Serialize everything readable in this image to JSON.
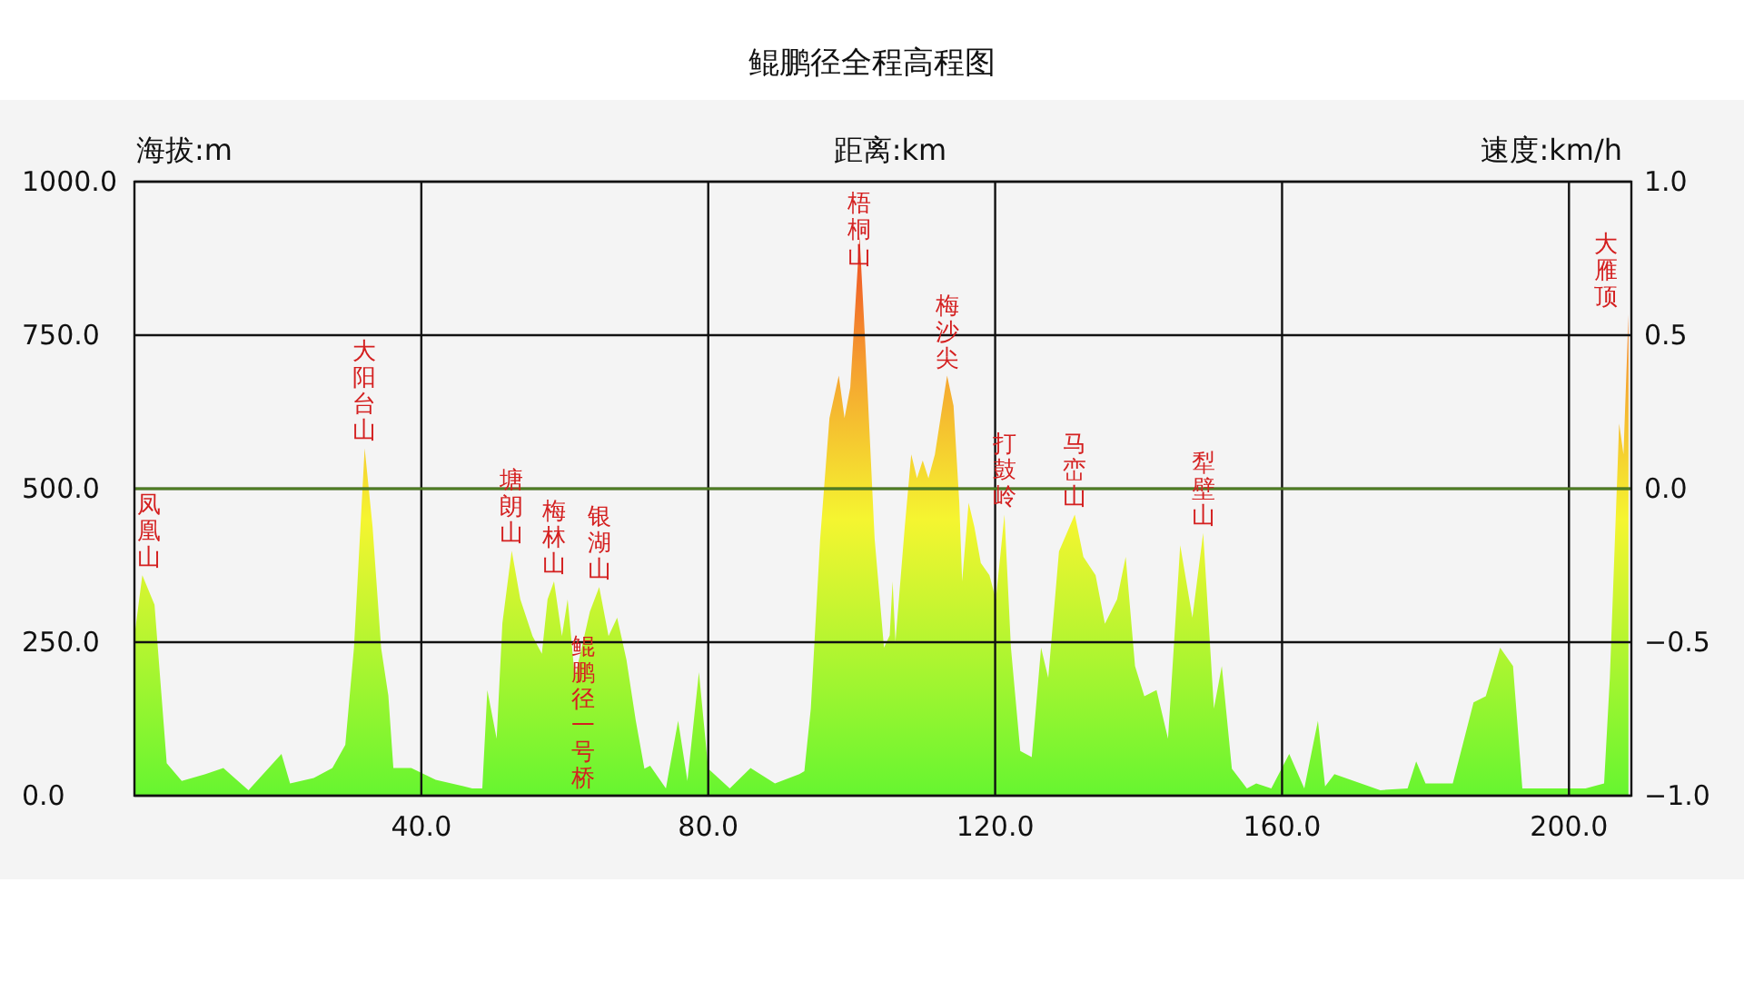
{
  "chart_data": {
    "type": "area",
    "title": "鲲鹏径全程高程图",
    "xlabel": "距离:km",
    "ylabel": "海拔:m",
    "y2label": "速度:km/h",
    "x": [
      0,
      1.1,
      2.8,
      4.5,
      6.6,
      9.9,
      12.4,
      15.9,
      20.5,
      21.7,
      25,
      27.6,
      29.4,
      30.6,
      32.1,
      33.2,
      34.4,
      35.4,
      36.1,
      38.6,
      42,
      47.1,
      48.5,
      49.2,
      50.5,
      51.3,
      52.6,
      53.8,
      55.5,
      56.8,
      57.6,
      58.5,
      59.6,
      60.4,
      61.4,
      63.5,
      64.8,
      66.1,
      67.3,
      68.6,
      69.9,
      71.1,
      71.9,
      74.1,
      75.8,
      77.1,
      78.7,
      80,
      83,
      85.9,
      89.3,
      92.7,
      93.4,
      94.3,
      95.6,
      96.9,
      98.2,
      99,
      99.8,
      101.1,
      101.9,
      103.2,
      104.5,
      105.3,
      105.7,
      106.1,
      107.4,
      108.3,
      109.1,
      109.9,
      110.7,
      111.6,
      113.3,
      114.2,
      115,
      115.4,
      116.3,
      117.1,
      118,
      119.2,
      120.1,
      121.3,
      122.2,
      123.5,
      125.1,
      126.4,
      127.4,
      128.9,
      131.1,
      132.3,
      134,
      135.3,
      137,
      138.2,
      139.5,
      140.8,
      142.5,
      144.1,
      145.8,
      147.5,
      149,
      150.5,
      151.6,
      153,
      155.1,
      156.4,
      158.5,
      161,
      163.1,
      165,
      166,
      167.3,
      173.7,
      177.5,
      178.7,
      180,
      183.8,
      186.7,
      188.4,
      190.4,
      192.2,
      193.5,
      197.3,
      202.3,
      204.9,
      205.7,
      207,
      207.6,
      208.3
    ],
    "values": [
      260,
      359,
      311,
      53,
      24,
      35,
      45,
      9,
      68,
      20,
      29,
      45,
      83,
      240,
      566,
      438,
      240,
      163,
      45,
      45,
      26,
      12,
      12,
      172,
      93,
      281,
      399,
      320,
      260,
      231,
      320,
      349,
      260,
      320,
      192,
      300,
      340,
      260,
      290,
      221,
      122,
      44,
      49,
      12,
      122,
      24,
      201,
      44,
      12,
      45,
      20,
      35,
      40,
      142,
      418,
      615,
      684,
      615,
      665,
      911,
      734,
      418,
      241,
      261,
      349,
      251,
      438,
      556,
      517,
      546,
      517,
      556,
      684,
      635,
      477,
      349,
      477,
      438,
      379,
      359,
      320,
      458,
      241,
      73,
      63,
      241,
      192,
      398,
      458,
      389,
      359,
      280,
      320,
      389,
      211,
      162,
      172,
      93,
      408,
      290,
      428,
      142,
      211,
      44,
      12,
      20,
      12,
      68,
      12,
      122,
      15,
      35,
      9,
      12,
      56,
      20,
      20,
      152,
      162,
      241,
      211,
      12,
      12,
      12,
      20,
      192,
      606,
      556,
      784
    ],
    "xlim": [
      0,
      208.7
    ],
    "ylim": [
      0,
      1000
    ],
    "y2lim": [
      -1,
      1
    ],
    "xticks": [
      {
        "value": 40,
        "label": "40.0"
      },
      {
        "value": 80,
        "label": "80.0"
      },
      {
        "value": 120,
        "label": "120.0"
      },
      {
        "value": 160,
        "label": "160.0"
      },
      {
        "value": 200,
        "label": "200.0"
      }
    ],
    "yticks": [
      {
        "value": 0,
        "label": "0.0"
      },
      {
        "value": 250,
        "label": "250.0"
      },
      {
        "value": 500,
        "label": "500.0"
      },
      {
        "value": 750,
        "label": "750.0"
      },
      {
        "value": 1000,
        "label": "1000.0"
      }
    ],
    "y2ticks": [
      {
        "value": 1,
        "label": "1.0"
      },
      {
        "value": 0.5,
        "label": "0.5"
      },
      {
        "value": 0,
        "label": "0.0"
      },
      {
        "value": -0.5,
        "label": "−0.5"
      },
      {
        "value": -1,
        "label": "−1.0"
      }
    ],
    "grid": true,
    "ref_lines": [
      {
        "axis": "y2",
        "value": 0,
        "color": "#4e7d22"
      }
    ],
    "annotations": [
      {
        "text": "凤凰山",
        "x": 1.1,
        "y": 359
      },
      {
        "text": "大阳台山",
        "x": 32.1,
        "y": 566
      },
      {
        "text": "塘朗山",
        "x": 52.6,
        "y": 399
      },
      {
        "text": "梅林山",
        "x": 58.5,
        "y": 349
      },
      {
        "text": "银湖山",
        "x": 64.8,
        "y": 340
      },
      {
        "text": "鲲鹏径一号桥",
        "x": 62.5,
        "y": 0
      },
      {
        "text": "梧桐山",
        "x": 101.1,
        "y": 911
      },
      {
        "text": "梅沙尖",
        "x": 113.3,
        "y": 684
      },
      {
        "text": "打鼓岭",
        "x": 121.3,
        "y": 458
      },
      {
        "text": "马峦山",
        "x": 131.1,
        "y": 458
      },
      {
        "text": "犁壁山",
        "x": 149,
        "y": 428
      },
      {
        "text": "大雁顶",
        "x": 208.3,
        "y": 784
      }
    ]
  }
}
